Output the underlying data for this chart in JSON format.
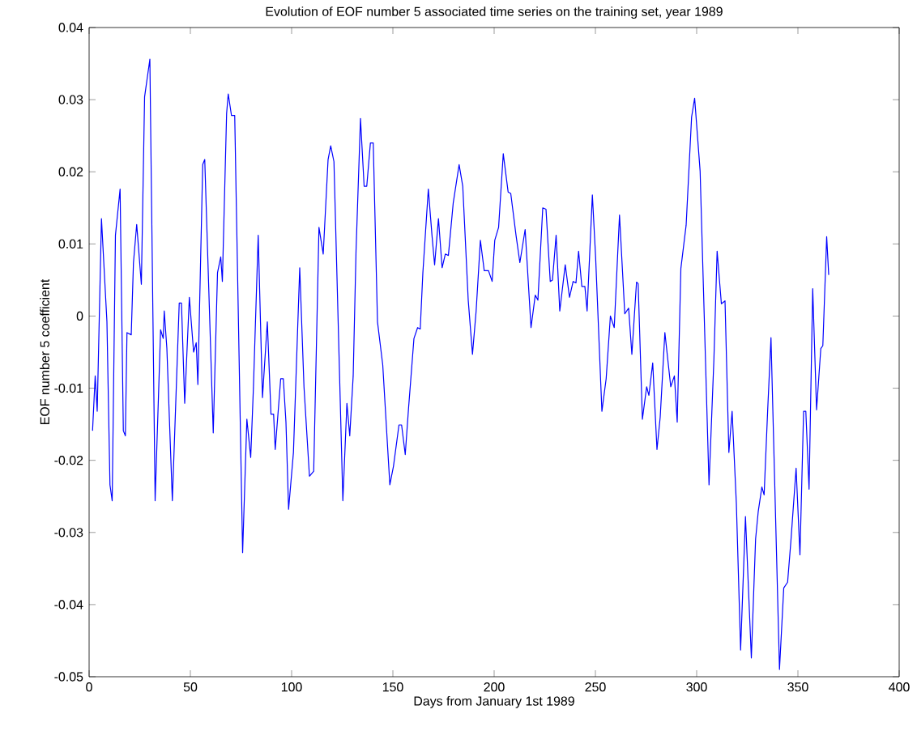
{
  "chart_data": {
    "type": "line",
    "title": "Evolution of EOF number 5 associated time series on the training set, year 1989",
    "xlabel": "Days from January 1st 1989",
    "ylabel": "EOF number 5 coefficient",
    "xlim": [
      0,
      400
    ],
    "ylim": [
      -0.05,
      0.04
    ],
    "xticks": [
      0,
      50,
      100,
      150,
      200,
      250,
      300,
      350,
      400
    ],
    "yticks": [
      -0.05,
      -0.04,
      -0.03,
      -0.02,
      -0.01,
      0,
      0.01,
      0.02,
      0.03,
      0.04
    ],
    "grid": false,
    "line_style": "solid",
    "series": [
      {
        "color": "#0000ff",
        "x": [
          1.7,
          3.0,
          4.0,
          6.1,
          8.8,
          10.3,
          11.4,
          13.0,
          15.3,
          16.9,
          17.9,
          18.7,
          20.8,
          21.9,
          23.5,
          25.8,
          27.4,
          30.0,
          32.6,
          35.3,
          36.6,
          37.1,
          38.4,
          41.1,
          44.5,
          45.6,
          47.2,
          49.5,
          51.6,
          52.9,
          53.7,
          56.1,
          57.1,
          61.3,
          63.4,
          65.0,
          65.8,
          67.9,
          68.7,
          70.3,
          71.9,
          75.8,
          77.9,
          79.8,
          81.1,
          83.5,
          85.6,
          88.0,
          89.8,
          91.1,
          91.9,
          94.6,
          95.9,
          97.2,
          98.5,
          100.9,
          104.0,
          106.1,
          108.8,
          110.9,
          113.5,
          115.6,
          118.0,
          119.3,
          120.9,
          125.3,
          127.3,
          128.7,
          130.4,
          131.8,
          134.0,
          135.8,
          137.1,
          138.9,
          140.3,
          142.4,
          145.0,
          148.5,
          150.3,
          153.0,
          154.3,
          156.1,
          157.7,
          160.4,
          162.2,
          163.5,
          164.8,
          167.5,
          169.3,
          170.6,
          172.5,
          174.3,
          175.9,
          177.4,
          179.8,
          182.7,
          184.5,
          187.2,
          189.3,
          191.1,
          193.2,
          195.1,
          197.2,
          199.0,
          200.3,
          202.2,
          204.5,
          206.9,
          208.2,
          210.8,
          212.7,
          215.3,
          218.2,
          220.3,
          221.6,
          224.0,
          225.6,
          227.7,
          228.8,
          230.6,
          232.4,
          235.1,
          237.2,
          239.0,
          240.4,
          241.7,
          243.3,
          244.8,
          245.9,
          248.5,
          250.1,
          253.2,
          255.3,
          257.4,
          259.3,
          261.9,
          264.5,
          266.4,
          268.0,
          270.3,
          271.1,
          273.2,
          275.3,
          276.4,
          278.3,
          280.4,
          282.0,
          284.3,
          287.2,
          289.0,
          290.4,
          292.2,
          294.8,
          297.5,
          299.0,
          301.7,
          306.1,
          308.5,
          310.1,
          312.2,
          314.0,
          315.9,
          317.5,
          319.6,
          321.7,
          324.1,
          327.0,
          329.1,
          330.4,
          332.2,
          333.3,
          335.1,
          336.7,
          340.9,
          343.0,
          344.9,
          346.5,
          349.1,
          351.0,
          352.8,
          353.9,
          355.5,
          357.3,
          359.2,
          361.3,
          362.3,
          364.2,
          365.2
        ],
        "values": [
          -0.0159,
          -0.0083,
          -0.0132,
          0.0135,
          -0.0008,
          -0.0234,
          -0.0256,
          0.0112,
          0.0176,
          -0.0159,
          -0.0166,
          -0.0023,
          -0.0026,
          0.0074,
          0.0127,
          0.0044,
          0.0304,
          0.0356,
          -0.0256,
          -0.0019,
          -0.0031,
          0.0007,
          -0.0045,
          -0.0256,
          0.0018,
          0.0018,
          -0.0121,
          0.0026,
          -0.005,
          -0.0037,
          -0.0095,
          0.021,
          0.0217,
          -0.0162,
          0.006,
          0.0082,
          0.0048,
          0.0281,
          0.0308,
          0.0278,
          0.0278,
          -0.0328,
          -0.0143,
          -0.0196,
          -0.0102,
          0.0112,
          -0.0113,
          -0.0008,
          -0.0136,
          -0.0136,
          -0.0185,
          -0.0087,
          -0.0087,
          -0.0147,
          -0.0268,
          -0.0189,
          0.0067,
          -0.0098,
          -0.0222,
          -0.0215,
          0.0123,
          0.0086,
          0.0217,
          0.0236,
          0.0214,
          -0.0256,
          -0.0121,
          -0.0166,
          -0.0083,
          0.009,
          0.0274,
          0.018,
          0.018,
          0.024,
          0.024,
          -0.0008,
          -0.0068,
          -0.0234,
          -0.0208,
          -0.0151,
          -0.0151,
          -0.0192,
          -0.0129,
          -0.0031,
          -0.0016,
          -0.0018,
          0.006,
          0.0176,
          0.0112,
          0.0071,
          0.0135,
          0.0067,
          0.0086,
          0.0084,
          0.0157,
          0.021,
          0.018,
          0.0022,
          -0.0053,
          0.0007,
          0.0105,
          0.0063,
          0.0063,
          0.0048,
          0.0105,
          0.0123,
          0.0225,
          0.0172,
          0.017,
          0.0112,
          0.0074,
          0.012,
          -0.0016,
          0.0029,
          0.0022,
          0.015,
          0.0148,
          0.0048,
          0.005,
          0.0112,
          0.0007,
          0.0071,
          0.0026,
          0.0048,
          0.0046,
          0.009,
          0.0041,
          0.0041,
          0.0007,
          0.0168,
          0.0082,
          -0.0132,
          -0.0087,
          0.0,
          -0.0016,
          0.014,
          0.0003,
          0.0011,
          -0.0053,
          0.0047,
          0.0045,
          -0.0143,
          -0.0098,
          -0.011,
          -0.0065,
          -0.0185,
          -0.014,
          -0.0023,
          -0.0098,
          -0.0083,
          -0.0147,
          0.0066,
          0.0126,
          0.0276,
          0.0302,
          0.0201,
          -0.0234,
          -0.0061,
          0.009,
          0.0017,
          0.0021,
          -0.0189,
          -0.0132,
          -0.026,
          -0.0463,
          -0.0278,
          -0.0474,
          -0.0309,
          -0.0271,
          -0.0237,
          -0.0248,
          -0.0128,
          -0.003,
          -0.049,
          -0.0377,
          -0.0369,
          -0.0313,
          -0.0211,
          -0.0331,
          -0.0132,
          -0.0132,
          -0.024,
          0.0038,
          -0.013,
          -0.0045,
          -0.0041,
          0.011,
          0.0057
        ]
      }
    ]
  }
}
